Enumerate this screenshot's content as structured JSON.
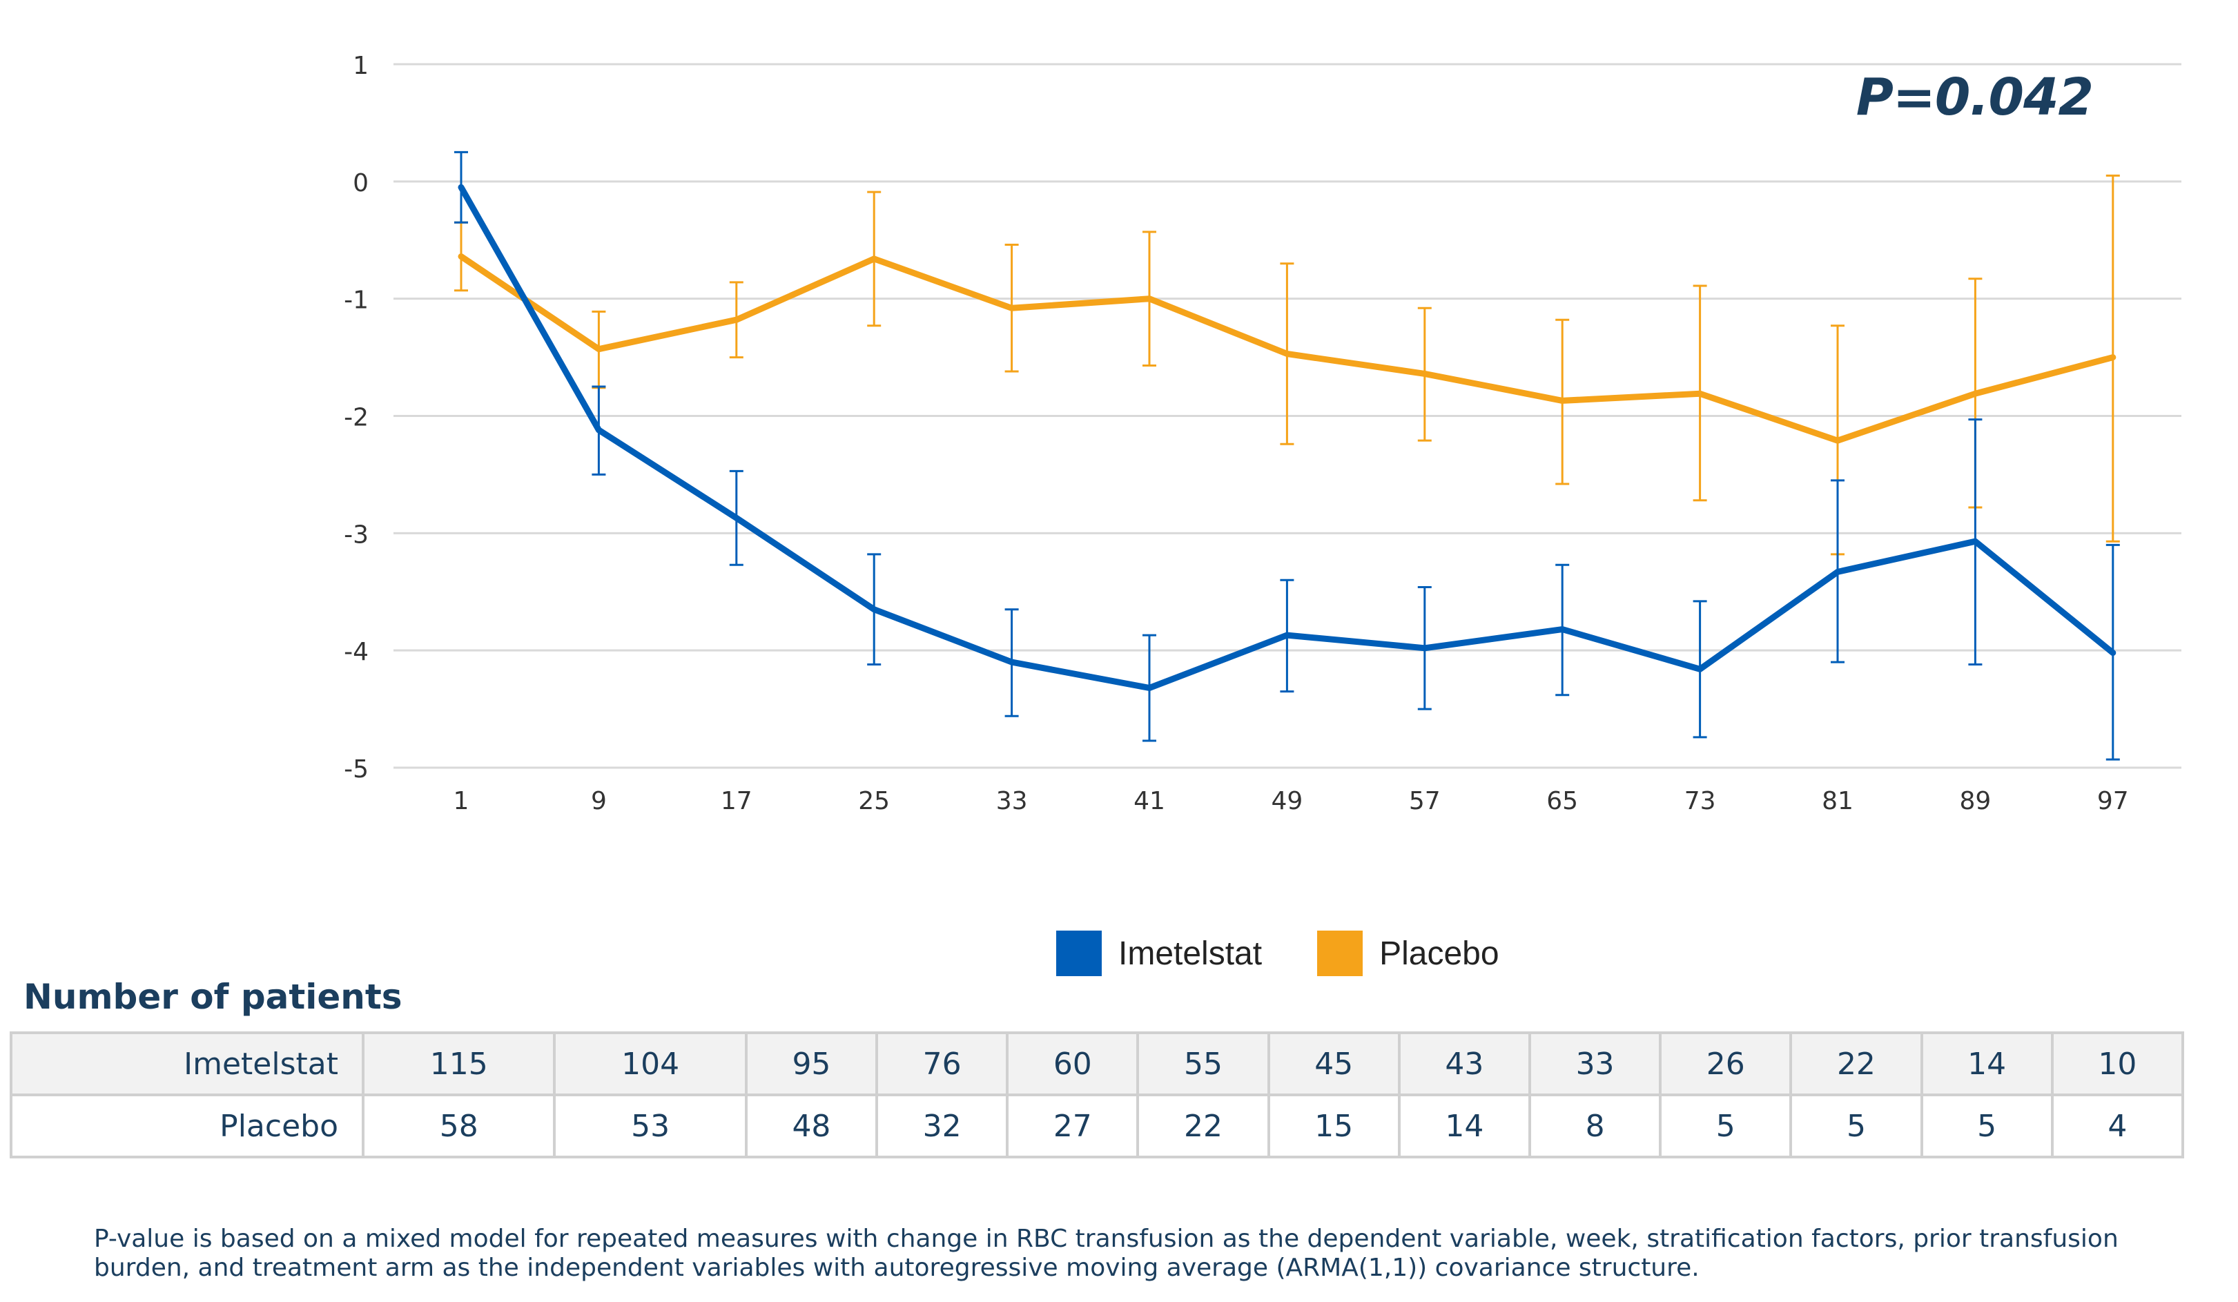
{
  "chart_data": {
    "type": "line",
    "title": "",
    "xlabel": "",
    "ylabel": "",
    "ylim": [
      -5,
      1
    ],
    "yticks": [
      1,
      0,
      -1,
      -2,
      -3,
      -4,
      -5
    ],
    "x": [
      1,
      9,
      17,
      25,
      33,
      41,
      49,
      57,
      65,
      73,
      81,
      89,
      97
    ],
    "series": [
      {
        "name": "Imetelstat",
        "color": "#005eb8",
        "values": [
          -0.05,
          -2.12,
          -2.87,
          -3.65,
          -4.1,
          -4.32,
          -3.87,
          -3.98,
          -3.82,
          -4.16,
          -3.33,
          -3.07,
          -4.02
        ],
        "error_low": [
          -0.35,
          -2.5,
          -3.27,
          -4.12,
          -4.56,
          -4.77,
          -4.35,
          -4.5,
          -4.38,
          -4.74,
          -4.1,
          -4.12,
          -4.93
        ],
        "error_high": [
          0.25,
          -1.75,
          -2.47,
          -3.18,
          -3.65,
          -3.87,
          -3.4,
          -3.46,
          -3.27,
          -3.58,
          -2.55,
          -2.03,
          -3.1
        ]
      },
      {
        "name": "Placebo",
        "color": "#f5a31a",
        "values": [
          -0.64,
          -1.43,
          -1.18,
          -0.66,
          -1.08,
          -1.0,
          -1.47,
          -1.64,
          -1.87,
          -1.81,
          -2.21,
          -1.81,
          -1.5
        ],
        "error_low": [
          -0.93,
          -1.76,
          -1.5,
          -1.23,
          -1.62,
          -1.57,
          -2.24,
          -2.21,
          -2.58,
          -2.72,
          -3.18,
          -2.78,
          -3.07
        ],
        "error_high": [
          -0.35,
          -1.11,
          -0.86,
          -0.09,
          -0.54,
          -0.43,
          -0.7,
          -1.08,
          -1.18,
          -0.89,
          -1.23,
          -0.83,
          0.05
        ]
      }
    ],
    "annotation": "P=0.042",
    "legend_position": "bottom-center",
    "grid": true
  },
  "table": {
    "title": "Number of patients",
    "rows": [
      {
        "label": "Imetelstat",
        "values": [
          "115",
          "104",
          "95",
          "76",
          "60",
          "55",
          "45",
          "43",
          "33",
          "26",
          "22",
          "14",
          "10"
        ]
      },
      {
        "label": "Placebo",
        "values": [
          "58",
          "53",
          "48",
          "32",
          "27",
          "22",
          "15",
          "14",
          "8",
          "5",
          "5",
          "5",
          "4"
        ]
      }
    ]
  },
  "footnote": "P-value is based on a mixed model for repeated measures with change in RBC transfusion as the dependent variable, week, stratification factors, prior transfusion burden, and treatment arm as the independent variables with autoregressive moving average (ARMA(1,1)) covariance structure."
}
